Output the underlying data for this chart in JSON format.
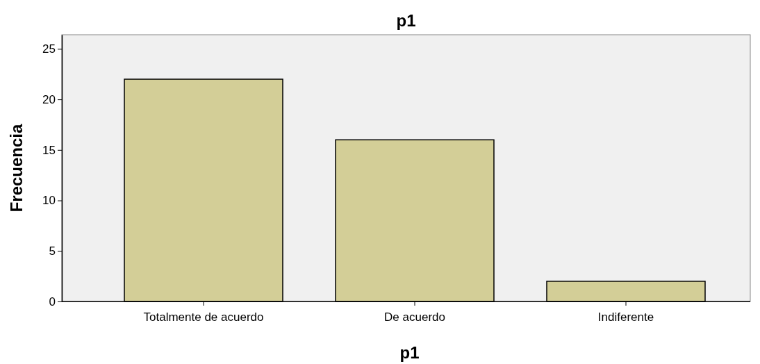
{
  "chart_data": {
    "type": "bar",
    "title": "p1",
    "xlabel": "p1",
    "ylabel": "Frecuencia",
    "categories": [
      "Totalmente de acuerdo",
      "De acuerdo",
      "Indiferente"
    ],
    "values": [
      22,
      16,
      2
    ],
    "color": "#d3ce97",
    "ylim": [
      0,
      26.4
    ],
    "yticks": [
      0,
      5,
      10,
      15,
      20,
      25
    ],
    "grid": false
  }
}
